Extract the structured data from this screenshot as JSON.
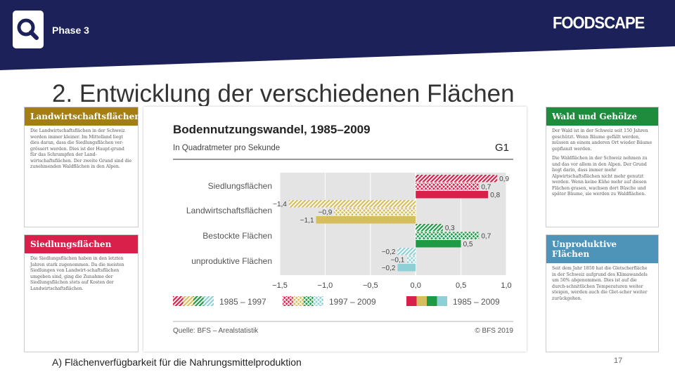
{
  "header": {
    "phase": "Phase 3",
    "logo": "FOODSCAPE",
    "search_icon": "search-icon"
  },
  "slide": {
    "title": "2. Entwicklung der verschiedenen Flächen",
    "caption": "A) Flächenverfügbarkeit für die Nahrungsmittelproduktion",
    "page": "17"
  },
  "cards": {
    "landwirtschaft": {
      "title": "Landwirtschaftsflächen",
      "color": "#a37e16",
      "paragraphs": [
        "Die Landwirtschaftsflächen in der Schweiz werden immer kleiner. Im Mittelland liegt dies daran, dass die Siedlungsflächen ver-grössert werden. Dies ist der Haupt-grund für das Schrumpfen der Land-wirtschaftsflächen. Der zweite Grund sind die zunehmenden Waldflächen in den Alpen."
      ]
    },
    "siedlung": {
      "title": "Siedlungsflächen",
      "color": "#d9204a",
      "paragraphs": [
        "Die Siedlungsflächen haben in den letzten Jahren stark zugenommen. Da die meisten Siedlungen von Landwirt-schaftsflächen umgeben sind, ging die Zunahme der Siedlungsflächen stets auf Kosten der Landwirtschaftsflächen."
      ]
    },
    "wald": {
      "title": "Wald und Gehölze",
      "color": "#1f8b3c",
      "paragraphs": [
        "Der Wald ist in der Schweiz seit 150 Jahren geschützt. Wenn Bäume gefällt werden, müssen an einem anderen Ort wieder Bäume gepflanzt werden.",
        "Die Waldflächen in der Schweiz nehmen zu und das vor allem in den Alpen. Der Grund liegt darin, dass immer mehr Alpwirtschaftsflächen nicht mehr genutzt werden. Wenn keine Kühe mehr auf diesen Flächen grasen, wachsen dort Büsche und später Bäume, sie werden zu Waldflächen."
      ]
    },
    "unproduktiv": {
      "title": "Unproduktive Flächen",
      "color": "#4d94b8",
      "paragraphs": [
        "Seit dem Jahr 1850 hat die Gletscherfläche in der Schweiz aufgrund des Klimawandels um 50% abgenommen. Dies ist auf die durch-schnittlichen Temperaturen weiter steigen, werden auch die Glet-scher weiter zurückgehen."
      ]
    }
  },
  "chart_data": {
    "type": "bar",
    "title": "Bodennutzungswandel, 1985–2009",
    "subtitle": "In Quadratmeter pro Sekunde",
    "tag": "G1",
    "categories": [
      "Siedlungsflächen",
      "Landwirtschaftsflächen",
      "Bestockte Flächen",
      "unproduktive Flächen"
    ],
    "category_colors": [
      "#d9204a",
      "#d6bd5e",
      "#1f9a44",
      "#8fd0d6"
    ],
    "series": [
      {
        "name": "1985 – 1997",
        "style": "hatch-diagonal",
        "values": [
          0.9,
          -1.4,
          0.3,
          -0.2
        ]
      },
      {
        "name": "1997 – 2009",
        "style": "hatch-cross",
        "values": [
          0.7,
          -0.9,
          0.7,
          -0.1
        ]
      },
      {
        "name": "1985 – 2009",
        "style": "solid",
        "values": [
          0.8,
          -1.1,
          0.5,
          -0.2
        ]
      }
    ],
    "value_labels": [
      [
        "0,9",
        "0,7",
        "0,8"
      ],
      [
        "−1,4",
        "−0,9",
        "−1,1"
      ],
      [
        "0,3",
        "0,7",
        "0,5"
      ],
      [
        "−0,2",
        "−0,1",
        "−0,2"
      ]
    ],
    "xlim": [
      -1.5,
      1.0
    ],
    "ticks": [
      -1.5,
      -1.0,
      -0.5,
      0.0,
      0.5,
      1.0
    ],
    "tick_labels": [
      "−1,5",
      "−1,0",
      "−0,5",
      "0,0",
      "0,5",
      "1,0"
    ],
    "source": "Quelle: BFS – Arealstatistik",
    "copyright": "© BFS 2019"
  }
}
